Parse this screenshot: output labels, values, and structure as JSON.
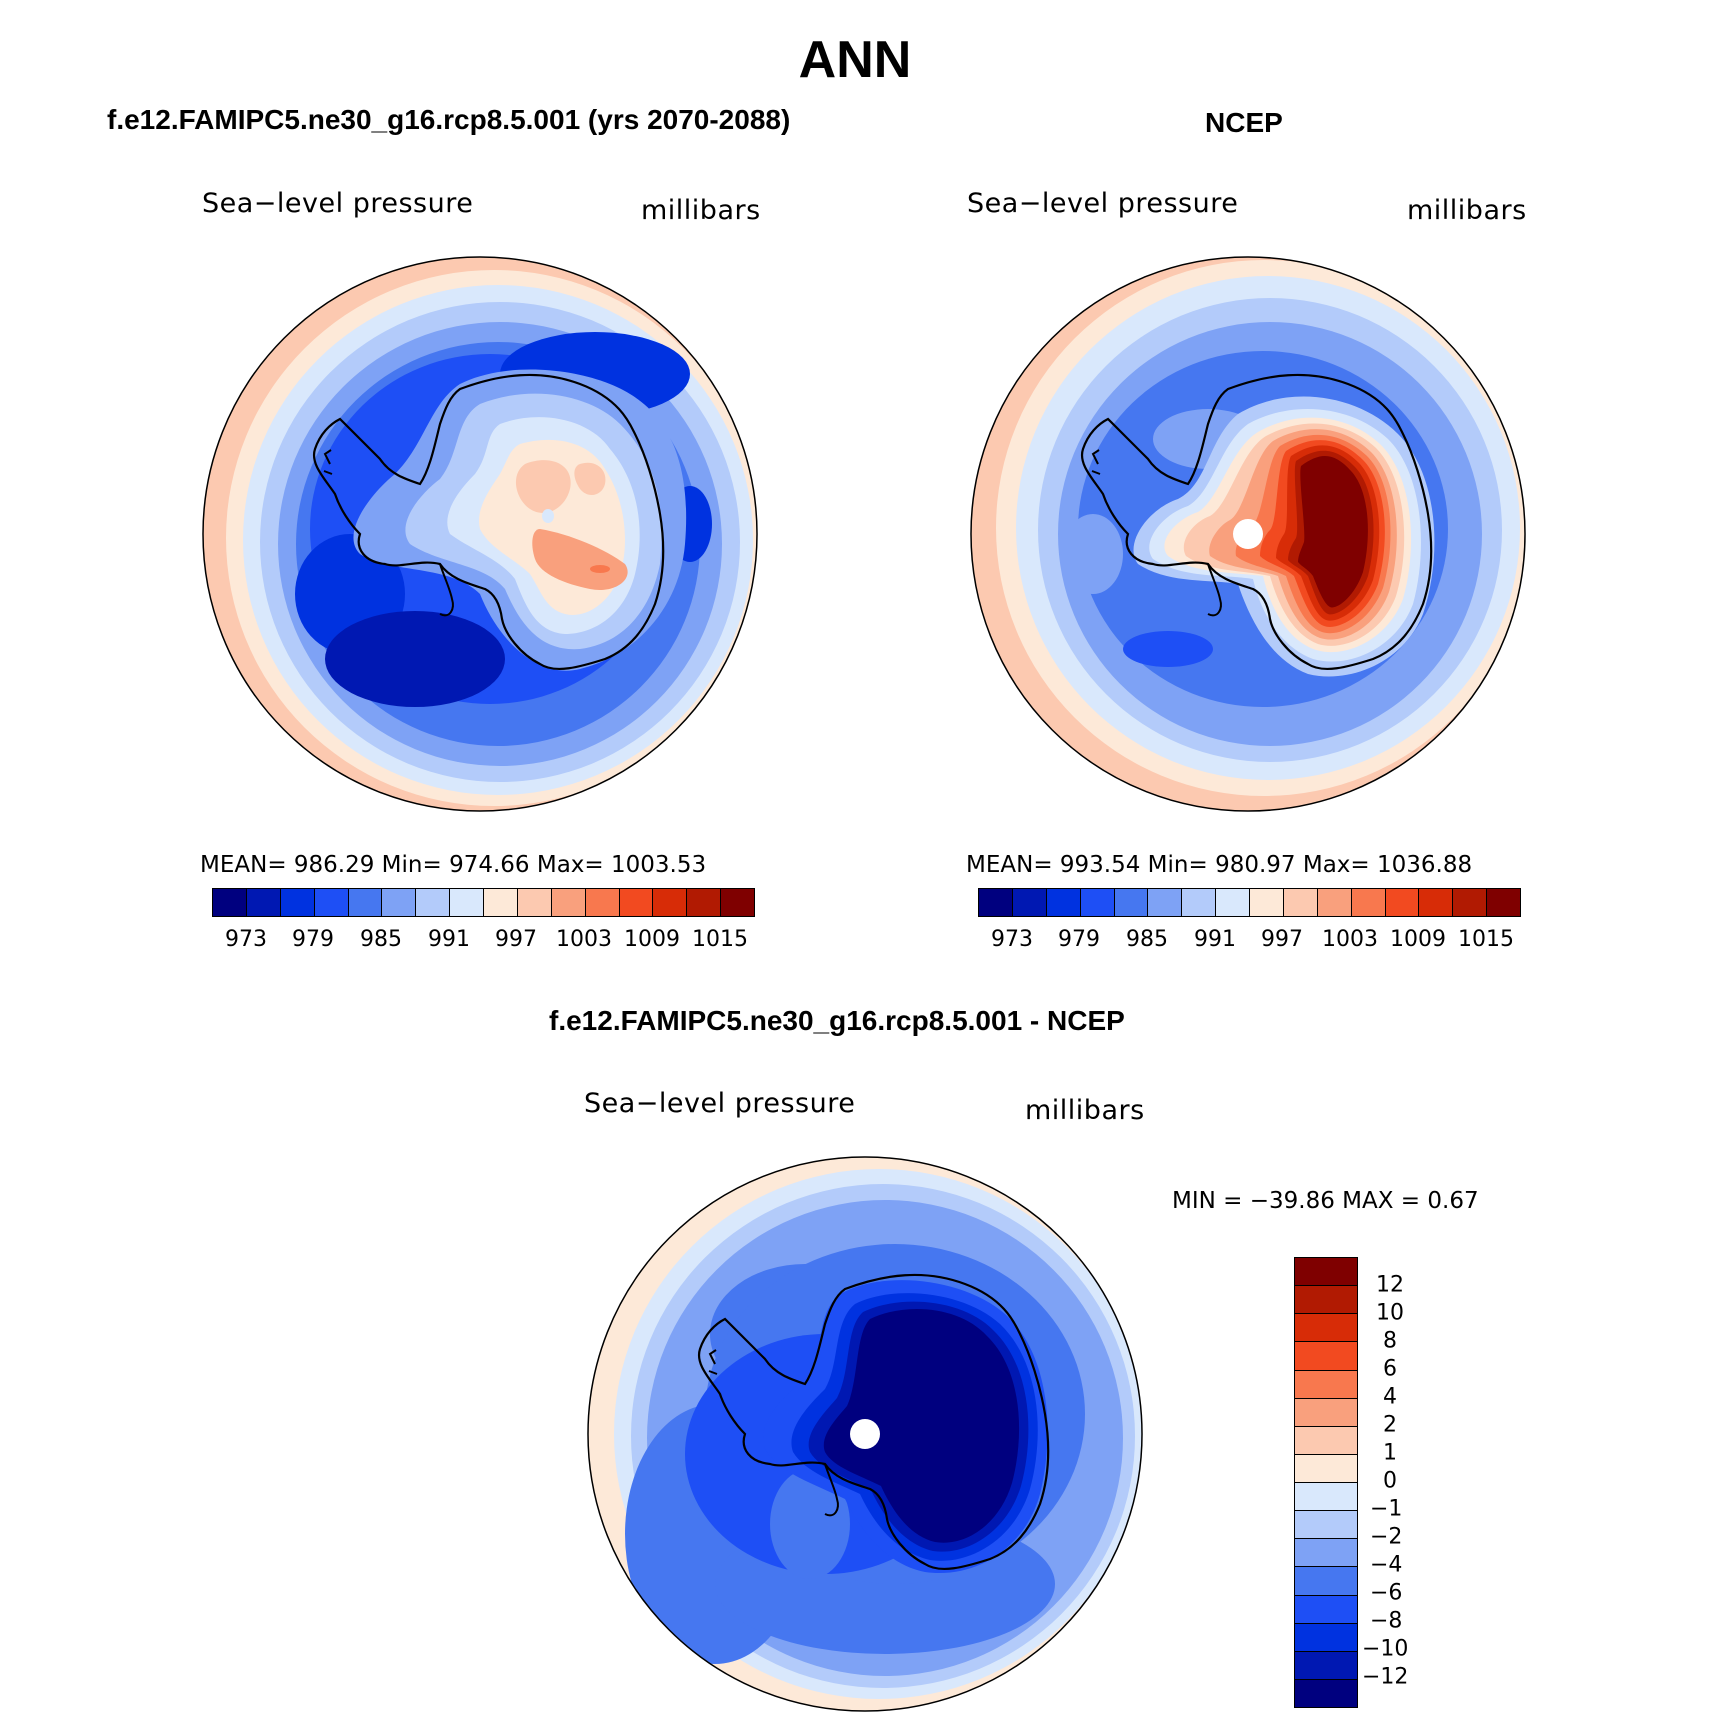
{
  "main_title": "ANN",
  "panels": [
    {
      "case_title": "f.e12.FAMIPC5.ne30_g16.rcp8.5.001 (yrs 2070-2088)",
      "variable_label": "Sea−level pressure",
      "units_label": "millibars",
      "stats_text": "MEAN= 986.29   Min= 974.66   Max= 1003.53",
      "colorbar_ticks": [
        "973",
        "979",
        "985",
        "991",
        "997",
        "1003",
        "1009",
        "1015"
      ]
    },
    {
      "case_title": "NCEP",
      "variable_label": "Sea−level pressure",
      "units_label": "millibars",
      "stats_text": "MEAN= 993.54   Min= 980.97   Max= 1036.88",
      "colorbar_ticks": [
        "973",
        "979",
        "985",
        "991",
        "997",
        "1003",
        "1009",
        "1015"
      ]
    }
  ],
  "diff_panel": {
    "case_title": "f.e12.FAMIPC5.ne30_g16.rcp8.5.001 - NCEP",
    "variable_label": "Sea−level pressure",
    "units_label": "millibars",
    "stats_text": "MIN = −39.86 MAX =    0.67",
    "colorbar_ticks": [
      "12",
      "10",
      "8",
      "6",
      "4",
      "2",
      "1",
      "0",
      "−1",
      "−2",
      "−4",
      "−6",
      "−8",
      "−10",
      "−12"
    ]
  },
  "colors": {
    "abs_palette": [
      "#00007f",
      "#0018b2",
      "#0032e0",
      "#1e4ff5",
      "#4677f0",
      "#7ea2f5",
      "#b3cbfa",
      "#d9e8fc",
      "#fde9d8",
      "#fcc9b0",
      "#f9a07d",
      "#f8784e",
      "#f24a20",
      "#d72c07",
      "#b11a02",
      "#7f0000"
    ],
    "diff_palette": [
      "#7f0000",
      "#b11a02",
      "#d72c07",
      "#f24a20",
      "#f8784e",
      "#f9a07d",
      "#fcc9b0",
      "#fde9d8",
      "#d9e8fc",
      "#b3cbfa",
      "#7ea2f5",
      "#4677f0",
      "#1e4ff5",
      "#0032e0",
      "#0018b2",
      "#00007f"
    ]
  }
}
